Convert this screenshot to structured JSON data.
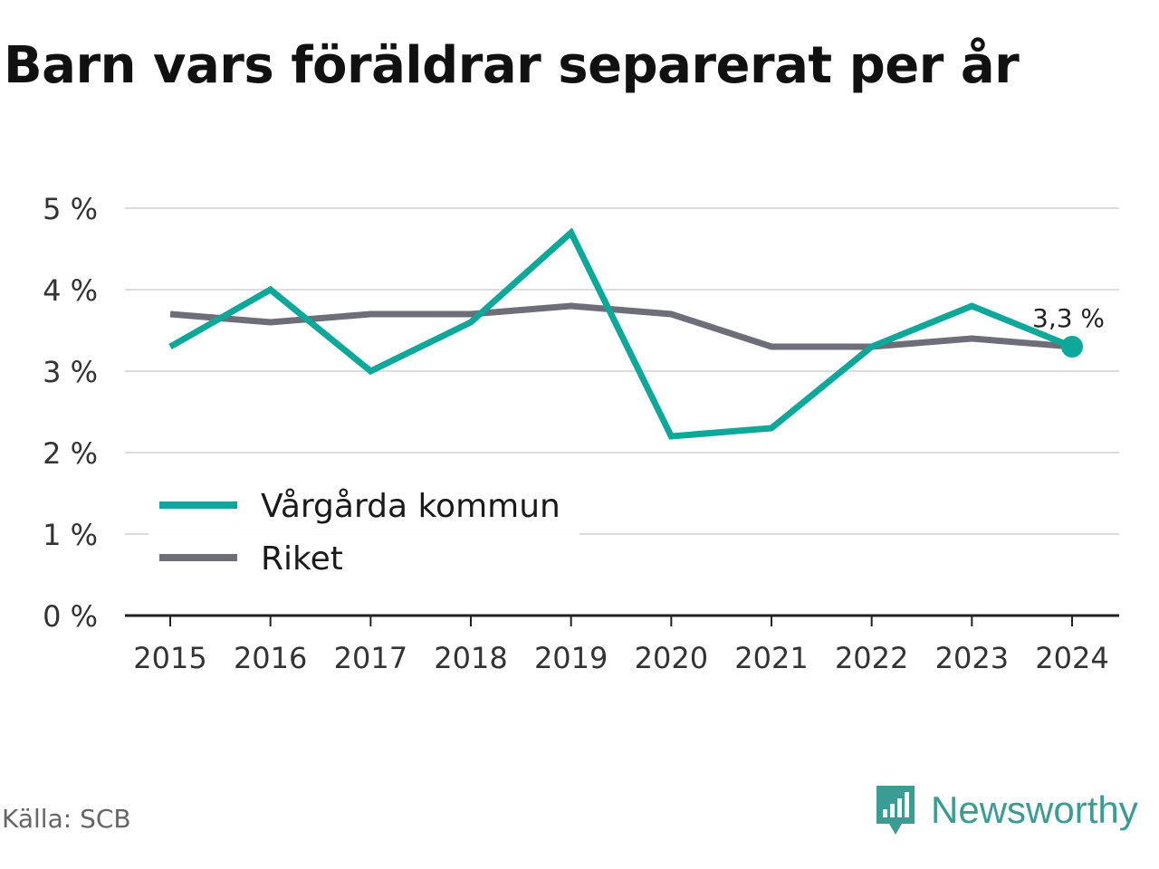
{
  "title": "Barn vars föräldrar separerat per år",
  "source": "Källa: SCB",
  "brand": "Newsworthy",
  "colors": {
    "series1": "#0ea89b",
    "series2": "#6e6e78",
    "grid": "#dddddd",
    "axis": "#222222",
    "brand": "#3b9c93"
  },
  "chart_data": {
    "type": "line",
    "title": "Barn vars föräldrar separerat per år",
    "categories": [
      "2015",
      "2016",
      "2017",
      "2018",
      "2019",
      "2020",
      "2021",
      "2022",
      "2023",
      "2024"
    ],
    "series": [
      {
        "name": "Vårgårda kommun",
        "values": [
          3.3,
          4.0,
          3.0,
          3.6,
          4.7,
          2.2,
          2.3,
          3.3,
          3.8,
          3.3
        ]
      },
      {
        "name": "Riket",
        "values": [
          3.7,
          3.6,
          3.7,
          3.7,
          3.8,
          3.7,
          3.3,
          3.3,
          3.4,
          3.3
        ]
      }
    ],
    "ylim": [
      0,
      5
    ],
    "yticks": [
      "0 %",
      "1 %",
      "2 %",
      "3 %",
      "4 %",
      "5 %"
    ],
    "end_label": "3,3 %",
    "legend_position": "bottom-left",
    "grid": true
  }
}
